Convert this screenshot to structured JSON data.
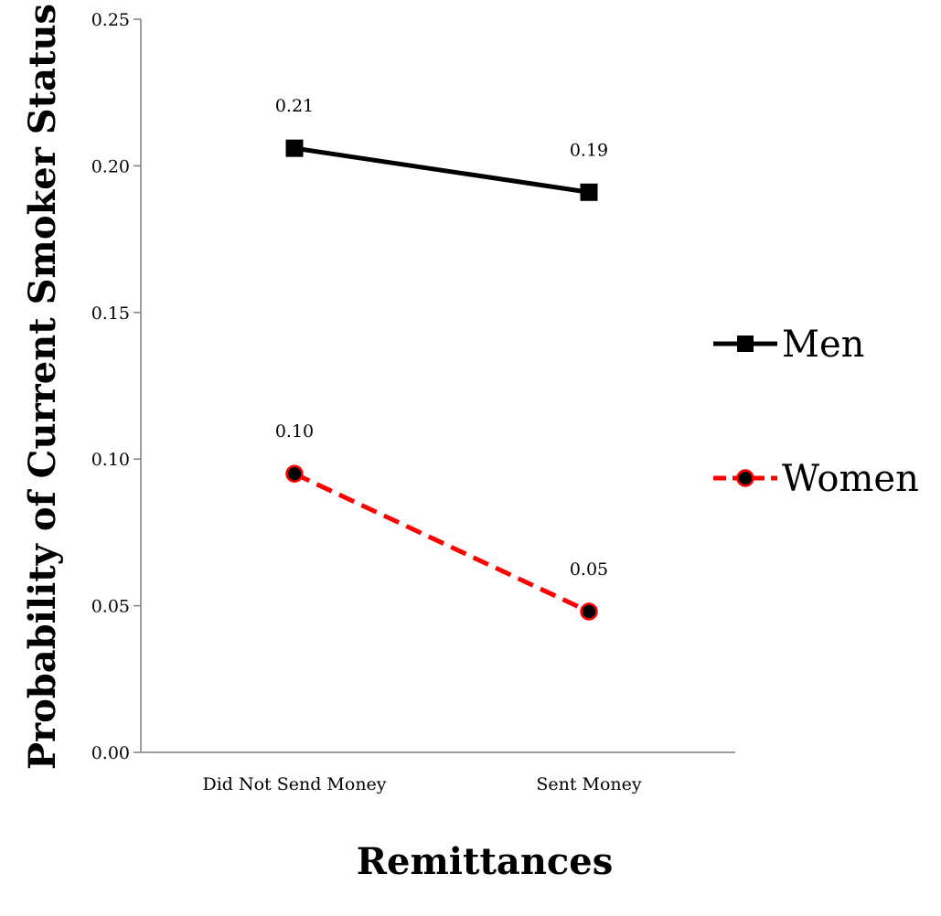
{
  "chart_data": {
    "type": "line",
    "categories": [
      "Did Not Send Money",
      "Sent Money"
    ],
    "series": [
      {
        "name": "Men",
        "values": [
          0.206,
          0.191
        ],
        "labels": [
          "0.21",
          "0.19"
        ],
        "color": "#000000",
        "marker": "square",
        "dash": "solid"
      },
      {
        "name": "Women",
        "values": [
          0.095,
          0.048
        ],
        "labels": [
          "0.10",
          "0.05"
        ],
        "color": "#ff0000",
        "marker": "circle",
        "dash": "dashed"
      }
    ],
    "yticks": [
      "0.00",
      "0.05",
      "0.10",
      "0.15",
      "0.20",
      "0.25"
    ],
    "ylim": [
      0,
      0.25
    ],
    "xlabel": "Remittances",
    "ylabel": "Probability of Current Smoker Status",
    "grid": false,
    "legend": "right"
  }
}
